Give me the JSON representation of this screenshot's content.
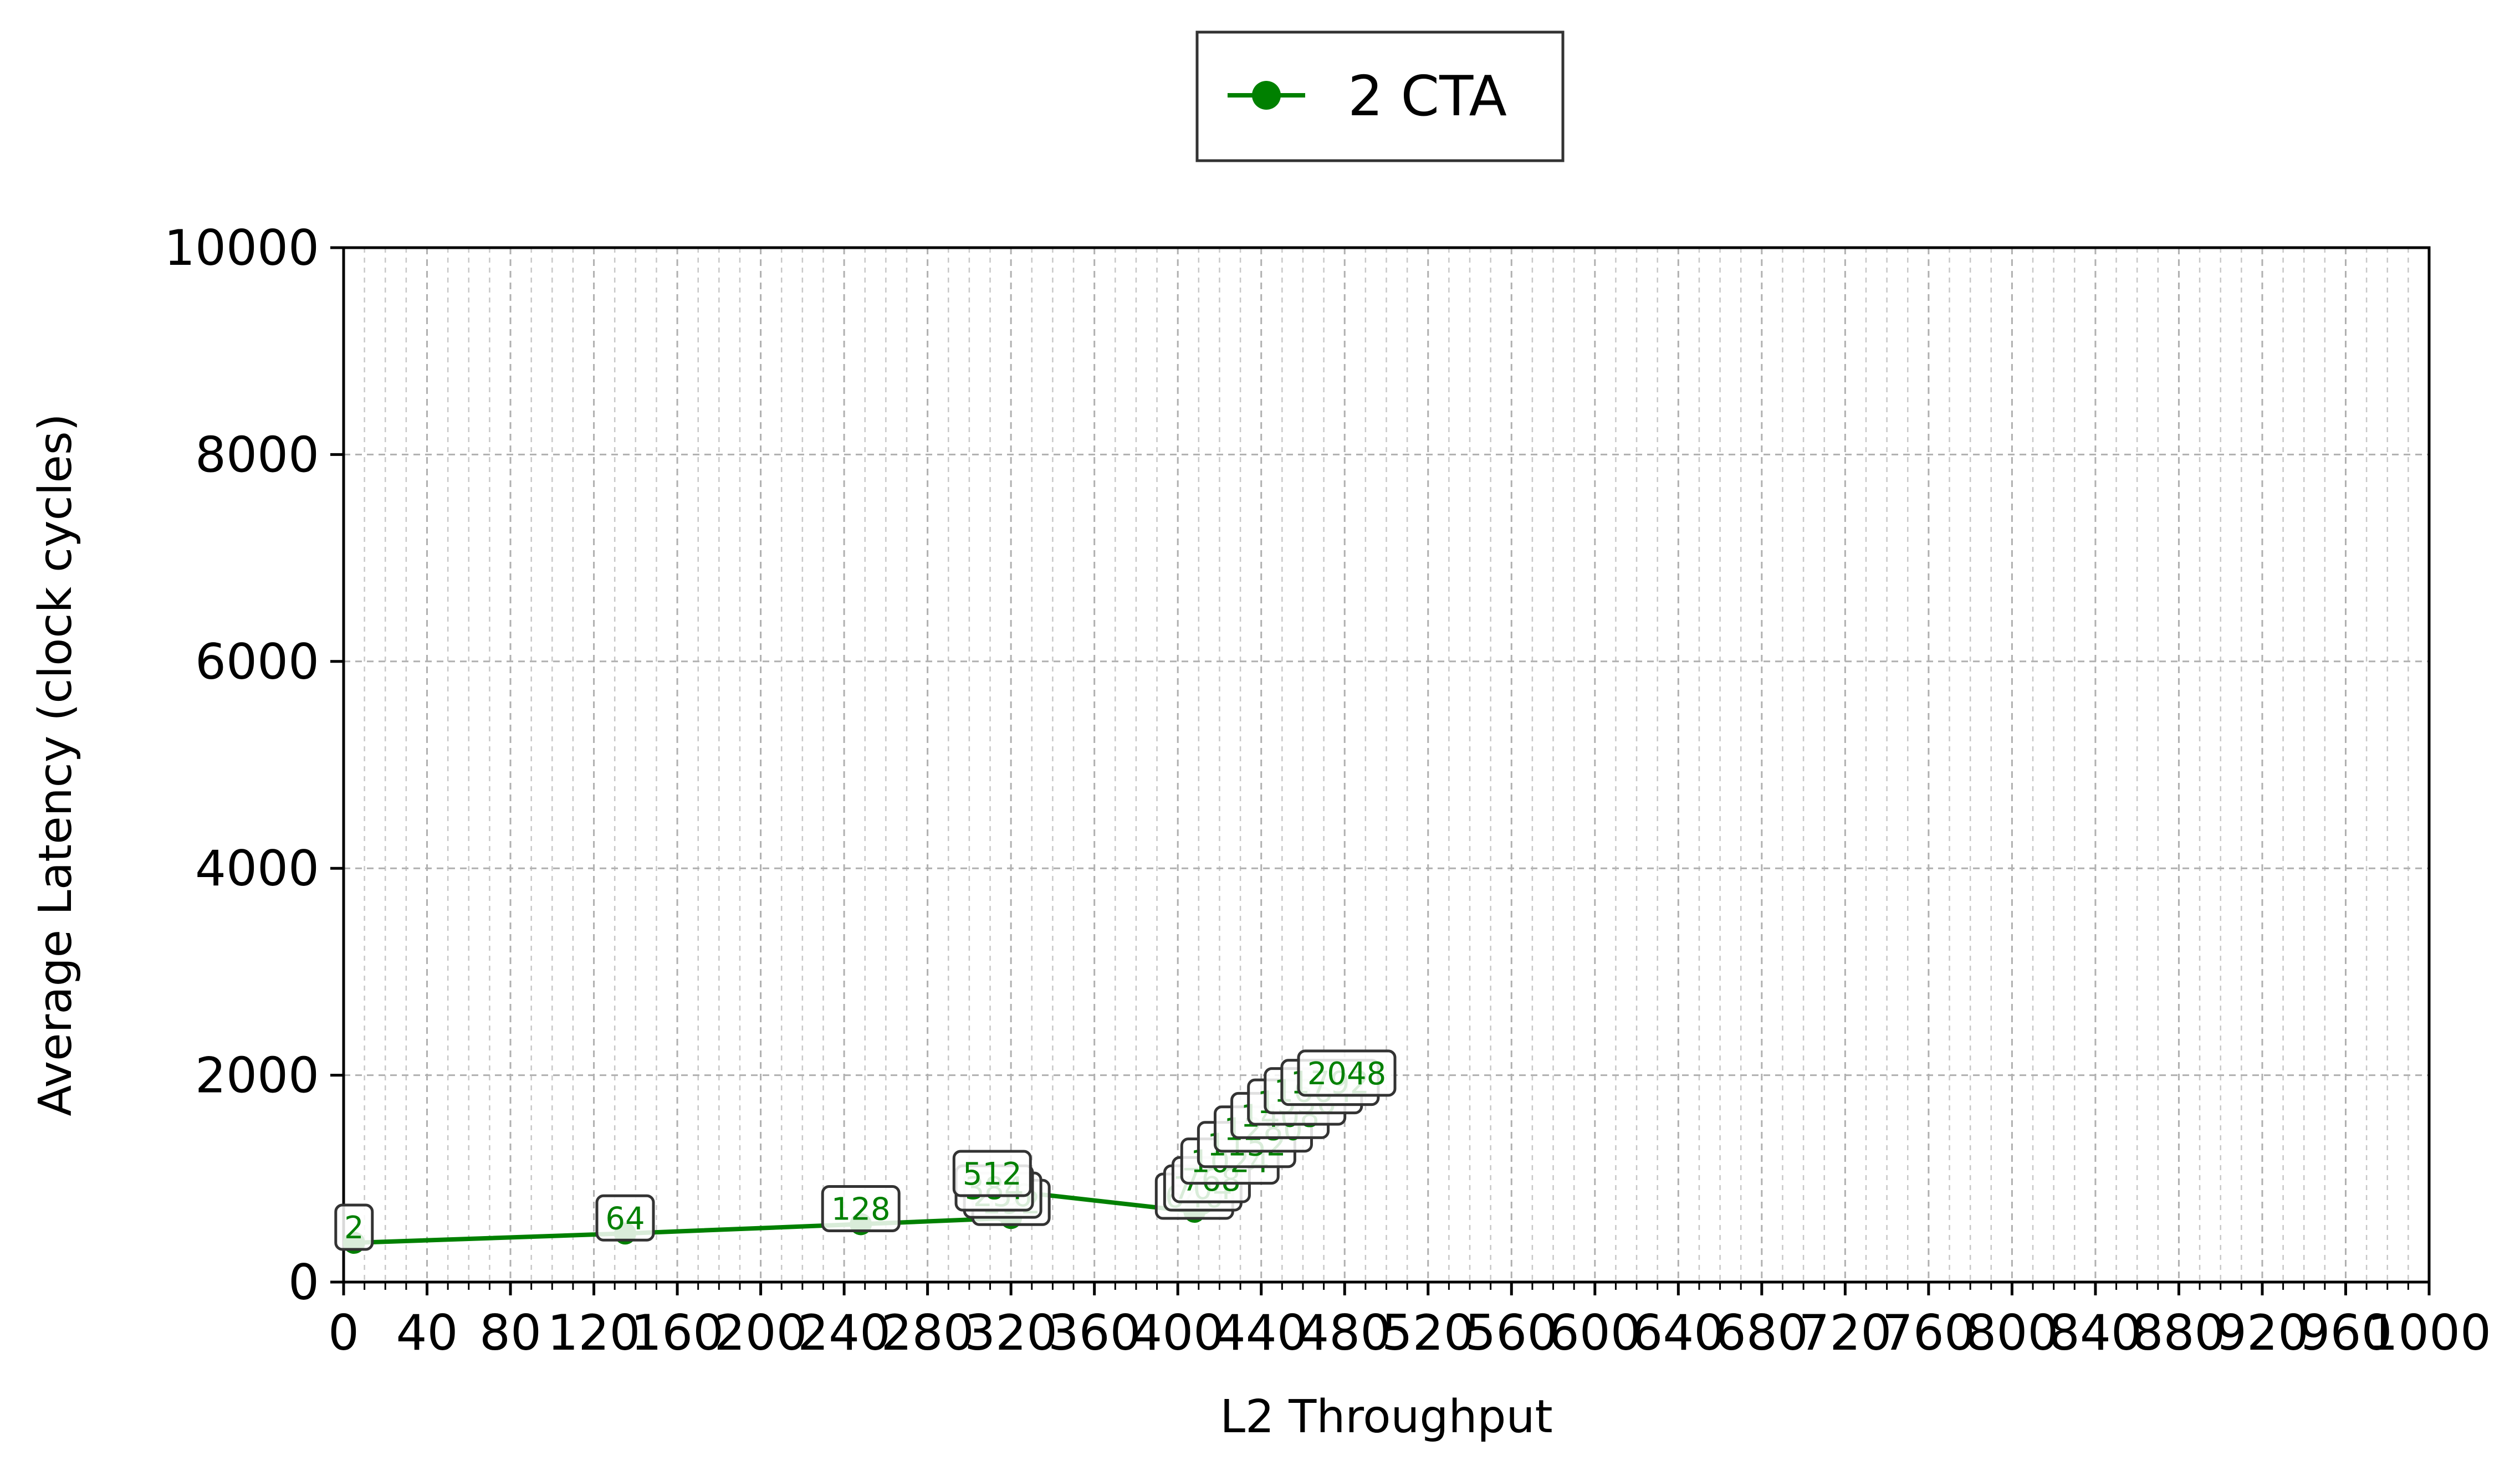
{
  "chart_data": {
    "type": "line",
    "title": "",
    "xlabel": "L2 Throughput",
    "ylabel": "Average Latency (clock cycles)",
    "xlim": [
      0,
      1000
    ],
    "ylim": [
      0,
      10000
    ],
    "x_ticks": [
      0,
      40,
      80,
      120,
      160,
      200,
      240,
      280,
      320,
      360,
      400,
      440,
      480,
      520,
      560,
      600,
      640,
      680,
      720,
      760,
      800,
      840,
      880,
      920,
      960,
      1000
    ],
    "y_ticks": [
      0,
      2000,
      4000,
      6000,
      8000,
      10000
    ],
    "grid": true,
    "legend_position": "top-center",
    "color": "#008000",
    "series": [
      {
        "name": "2 CTA",
        "points": [
          {
            "x": 5,
            "y": 380,
            "label": "2"
          },
          {
            "x": 135,
            "y": 470,
            "label": "64"
          },
          {
            "x": 248,
            "y": 560,
            "label": "128"
          },
          {
            "x": 320,
            "y": 620,
            "label": "192"
          },
          {
            "x": 316,
            "y": 690,
            "label": "256"
          },
          {
            "x": 312,
            "y": 760,
            "label": "384"
          },
          {
            "x": 311,
            "y": 900,
            "label": "512"
          },
          {
            "x": 408,
            "y": 680,
            "label": "640"
          },
          {
            "x": 412,
            "y": 760,
            "label": "704"
          },
          {
            "x": 416,
            "y": 840,
            "label": "768"
          },
          {
            "x": 425,
            "y": 1020,
            "label": "1024"
          },
          {
            "x": 433,
            "y": 1180,
            "label": "1152"
          },
          {
            "x": 441,
            "y": 1330,
            "label": "1280"
          },
          {
            "x": 449,
            "y": 1460,
            "label": "1408"
          },
          {
            "x": 457,
            "y": 1590,
            "label": "1536"
          },
          {
            "x": 465,
            "y": 1700,
            "label": "1664"
          },
          {
            "x": 473,
            "y": 1780,
            "label": "1792"
          },
          {
            "x": 481,
            "y": 1870,
            "label": "2048"
          }
        ]
      }
    ]
  }
}
